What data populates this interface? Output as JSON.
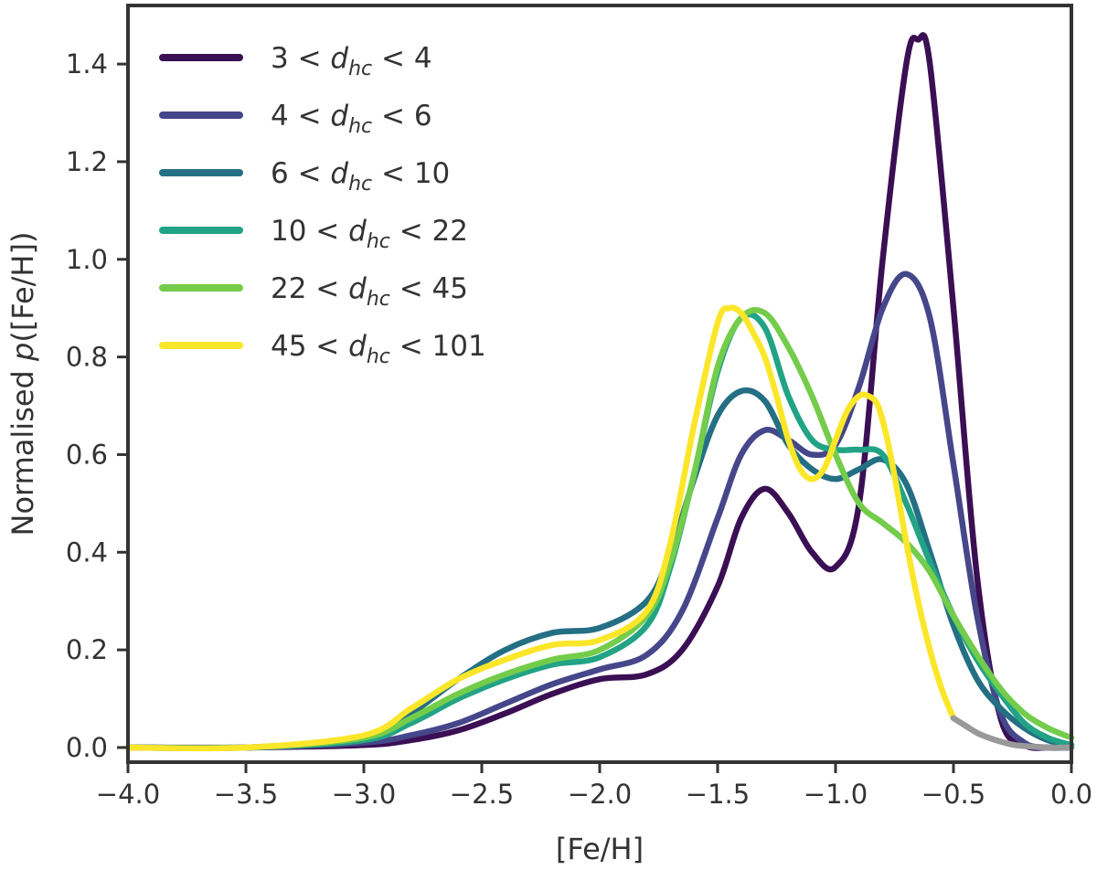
{
  "chart_data": {
    "type": "line",
    "xlabel": "[Fe/H]",
    "ylabel_prefix": "Normalised ",
    "ylabel_italic": "p",
    "ylabel_suffix": "([Fe/H])",
    "xlim": [
      -4.0,
      0.0
    ],
    "ylim": [
      -0.03,
      1.52
    ],
    "xticks": [
      -4.0,
      -3.5,
      -3.0,
      -2.5,
      -2.0,
      -1.5,
      -1.0,
      -0.5,
      0.0
    ],
    "xtick_labels": [
      "−4.0",
      "−3.5",
      "−3.0",
      "−2.5",
      "−2.0",
      "−1.5",
      "−1.0",
      "−0.5",
      "0.0"
    ],
    "yticks": [
      0.0,
      0.2,
      0.4,
      0.6,
      0.8,
      1.0,
      1.2,
      1.4
    ],
    "ytick_labels": [
      "0.0",
      "0.2",
      "0.4",
      "0.6",
      "0.8",
      "1.0",
      "1.2",
      "1.4"
    ],
    "legend_position": "top-left",
    "series": [
      {
        "legend_low": "3",
        "legend_var": "d",
        "legend_sub": "hc",
        "legend_high": "4",
        "color": "#3b0f54",
        "x": [
          -4.0,
          -3.5,
          -3.0,
          -2.8,
          -2.6,
          -2.4,
          -2.2,
          -2.0,
          -1.8,
          -1.65,
          -1.5,
          -1.4,
          -1.3,
          -1.2,
          -1.1,
          -1.0,
          -0.9,
          -0.8,
          -0.7,
          -0.65,
          -0.6,
          -0.5,
          -0.4,
          -0.3,
          -0.2,
          -0.1,
          0.0
        ],
        "y": [
          0.0,
          0.0,
          0.005,
          0.015,
          0.035,
          0.07,
          0.11,
          0.14,
          0.15,
          0.2,
          0.33,
          0.47,
          0.53,
          0.48,
          0.4,
          0.37,
          0.5,
          1.0,
          1.4,
          1.45,
          1.4,
          0.9,
          0.35,
          0.06,
          0.005,
          0.0,
          0.0
        ]
      },
      {
        "legend_low": "4",
        "legend_var": "d",
        "legend_sub": "hc",
        "legend_high": "6",
        "color": "#46468a",
        "x": [
          -4.0,
          -3.5,
          -3.0,
          -2.8,
          -2.6,
          -2.4,
          -2.2,
          -2.0,
          -1.8,
          -1.65,
          -1.5,
          -1.4,
          -1.3,
          -1.2,
          -1.1,
          -1.0,
          -0.9,
          -0.8,
          -0.7,
          -0.6,
          -0.5,
          -0.4,
          -0.3,
          -0.2,
          -0.1,
          0.0
        ],
        "y": [
          0.0,
          0.0,
          0.01,
          0.025,
          0.05,
          0.09,
          0.13,
          0.16,
          0.19,
          0.28,
          0.47,
          0.6,
          0.65,
          0.63,
          0.6,
          0.62,
          0.74,
          0.9,
          0.97,
          0.88,
          0.58,
          0.27,
          0.07,
          0.01,
          0.0,
          0.0
        ]
      },
      {
        "legend_low": "6",
        "legend_var": "d",
        "legend_sub": "hc",
        "legend_high": "10",
        "color": "#246f83",
        "x": [
          -4.0,
          -3.5,
          -3.0,
          -2.8,
          -2.6,
          -2.4,
          -2.2,
          -2.0,
          -1.8,
          -1.7,
          -1.6,
          -1.5,
          -1.4,
          -1.3,
          -1.2,
          -1.1,
          -1.0,
          -0.9,
          -0.8,
          -0.7,
          -0.6,
          -0.5,
          -0.4,
          -0.3,
          -0.2,
          -0.1,
          0.0
        ],
        "y": [
          0.0,
          0.0,
          0.02,
          0.07,
          0.14,
          0.2,
          0.235,
          0.245,
          0.3,
          0.4,
          0.55,
          0.68,
          0.73,
          0.71,
          0.62,
          0.57,
          0.55,
          0.57,
          0.59,
          0.54,
          0.4,
          0.25,
          0.14,
          0.08,
          0.04,
          0.015,
          0.005
        ]
      },
      {
        "legend_low": "10",
        "legend_var": "d",
        "legend_sub": "hc",
        "legend_high": "22",
        "color": "#22a385",
        "x": [
          -4.0,
          -3.5,
          -3.0,
          -2.8,
          -2.6,
          -2.4,
          -2.2,
          -2.0,
          -1.8,
          -1.7,
          -1.6,
          -1.5,
          -1.4,
          -1.3,
          -1.2,
          -1.1,
          -1.0,
          -0.9,
          -0.8,
          -0.7,
          -0.6,
          -0.5,
          -0.4,
          -0.3,
          -0.2,
          -0.1,
          0.0
        ],
        "y": [
          0.0,
          0.0,
          0.015,
          0.05,
          0.1,
          0.14,
          0.17,
          0.185,
          0.25,
          0.37,
          0.56,
          0.77,
          0.88,
          0.86,
          0.72,
          0.63,
          0.61,
          0.61,
          0.6,
          0.5,
          0.38,
          0.27,
          0.18,
          0.11,
          0.05,
          0.02,
          0.005
        ]
      },
      {
        "legend_low": "22",
        "legend_var": "d",
        "legend_sub": "hc",
        "legend_high": "45",
        "color": "#74cc4b",
        "x": [
          -4.0,
          -3.5,
          -3.0,
          -2.8,
          -2.6,
          -2.4,
          -2.2,
          -2.0,
          -1.8,
          -1.7,
          -1.6,
          -1.5,
          -1.4,
          -1.3,
          -1.2,
          -1.1,
          -1.0,
          -0.9,
          -0.8,
          -0.7,
          -0.6,
          -0.5,
          -0.4,
          -0.3,
          -0.2,
          -0.1,
          0.0
        ],
        "y": [
          0.0,
          0.0,
          0.02,
          0.06,
          0.11,
          0.15,
          0.18,
          0.2,
          0.27,
          0.38,
          0.56,
          0.78,
          0.88,
          0.89,
          0.82,
          0.72,
          0.6,
          0.5,
          0.46,
          0.42,
          0.36,
          0.27,
          0.19,
          0.12,
          0.07,
          0.04,
          0.02
        ]
      },
      {
        "legend_low": "45",
        "legend_var": "d",
        "legend_sub": "hc",
        "legend_high": "101",
        "color": "#fbe62a",
        "x": [
          -4.0,
          -3.5,
          -3.0,
          -2.8,
          -2.6,
          -2.4,
          -2.2,
          -2.0,
          -1.8,
          -1.7,
          -1.6,
          -1.5,
          -1.45,
          -1.4,
          -1.35,
          -1.3,
          -1.25,
          -1.2,
          -1.15,
          -1.1,
          -1.05,
          -1.0,
          -0.95,
          -0.9,
          -0.86,
          -0.82,
          -0.78,
          -0.74,
          -0.7,
          -0.65,
          -0.6,
          -0.55,
          -0.5
        ],
        "y": [
          0.0,
          0.0,
          0.025,
          0.08,
          0.14,
          0.18,
          0.21,
          0.22,
          0.28,
          0.42,
          0.66,
          0.87,
          0.9,
          0.89,
          0.85,
          0.8,
          0.72,
          0.63,
          0.57,
          0.55,
          0.57,
          0.63,
          0.69,
          0.72,
          0.72,
          0.7,
          0.63,
          0.53,
          0.42,
          0.3,
          0.2,
          0.12,
          0.06
        ]
      },
      {
        "legend_low": "",
        "legend_var": "",
        "legend_sub": "",
        "legend_high": "",
        "in_legend": false,
        "color": "#999999",
        "x": [
          -0.5,
          -0.45,
          -0.4,
          -0.35,
          -0.3,
          -0.25,
          -0.2,
          -0.1,
          0.0
        ],
        "y": [
          0.06,
          0.045,
          0.03,
          0.02,
          0.012,
          0.006,
          0.003,
          0.0,
          0.0
        ]
      }
    ]
  }
}
